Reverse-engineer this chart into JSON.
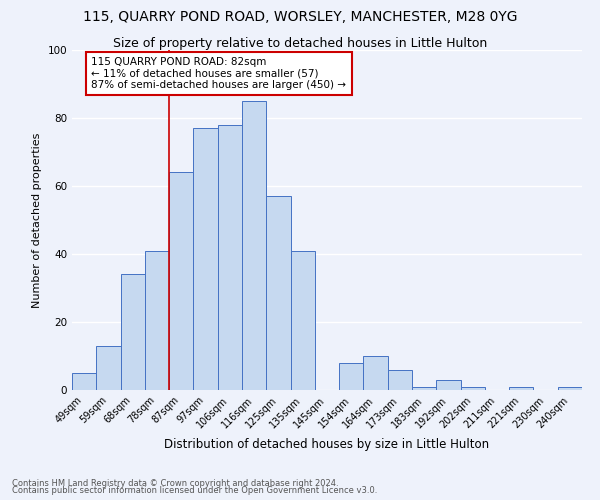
{
  "title": "115, QUARRY POND ROAD, WORSLEY, MANCHESTER, M28 0YG",
  "subtitle": "Size of property relative to detached houses in Little Hulton",
  "xlabel": "Distribution of detached houses by size in Little Hulton",
  "ylabel": "Number of detached properties",
  "footnote1": "Contains HM Land Registry data © Crown copyright and database right 2024.",
  "footnote2": "Contains public sector information licensed under the Open Government Licence v3.0.",
  "categories": [
    "49sqm",
    "59sqm",
    "68sqm",
    "78sqm",
    "87sqm",
    "97sqm",
    "106sqm",
    "116sqm",
    "125sqm",
    "135sqm",
    "145sqm",
    "154sqm",
    "164sqm",
    "173sqm",
    "183sqm",
    "192sqm",
    "202sqm",
    "211sqm",
    "221sqm",
    "230sqm",
    "240sqm"
  ],
  "values": [
    5,
    13,
    34,
    41,
    64,
    77,
    78,
    85,
    57,
    41,
    0,
    8,
    10,
    6,
    1,
    3,
    1,
    0,
    1,
    0,
    1
  ],
  "bar_color": "#c6d9f0",
  "bar_edge_color": "#4472c4",
  "vline_x_index": 3.5,
  "vline_color": "#cc0000",
  "annotation_line1": "115 QUARRY POND ROAD: 82sqm",
  "annotation_line2": "← 11% of detached houses are smaller (57)",
  "annotation_line3": "87% of semi-detached houses are larger (450) →",
  "annotation_box_color": "#cc0000",
  "ylim": [
    0,
    100
  ],
  "yticks": [
    0,
    20,
    40,
    60,
    80,
    100
  ],
  "bg_color": "#eef2fb",
  "grid_color": "#ffffff",
  "title_fontsize": 10,
  "subtitle_fontsize": 9,
  "ylabel_fontsize": 8,
  "xlabel_fontsize": 8.5,
  "tick_fontsize": 7,
  "annotation_fontsize": 7.5,
  "footnote_fontsize": 6
}
